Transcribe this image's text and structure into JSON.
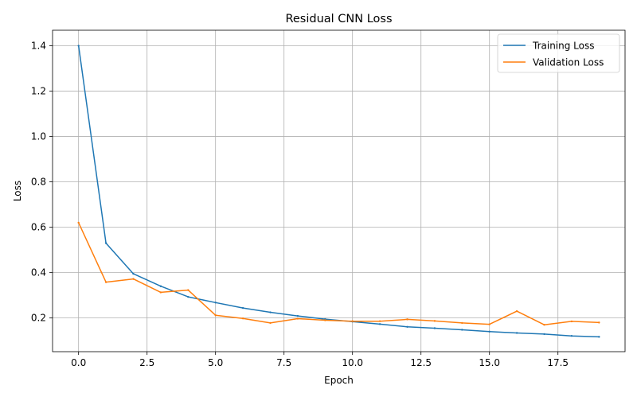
{
  "chart_data": {
    "type": "line",
    "title": "Residual CNN Loss",
    "xlabel": "Epoch",
    "ylabel": "Loss",
    "x": [
      0,
      1,
      2,
      3,
      4,
      5,
      6,
      7,
      8,
      9,
      10,
      11,
      12,
      13,
      14,
      15,
      16,
      17,
      18,
      19
    ],
    "series": [
      {
        "name": "Training Loss",
        "color": "#1f77b4",
        "values": [
          1.4,
          0.53,
          0.395,
          0.34,
          0.293,
          0.268,
          0.244,
          0.225,
          0.209,
          0.195,
          0.184,
          0.173,
          0.161,
          0.155,
          0.148,
          0.14,
          0.134,
          0.129,
          0.121,
          0.117
        ]
      },
      {
        "name": "Validation Loss",
        "color": "#ff7f0e",
        "values": [
          0.62,
          0.358,
          0.372,
          0.313,
          0.323,
          0.212,
          0.198,
          0.178,
          0.197,
          0.19,
          0.186,
          0.186,
          0.194,
          0.187,
          0.178,
          0.172,
          0.23,
          0.17,
          0.185,
          0.18
        ]
      }
    ],
    "xlim": [
      -0.95,
      19.95
    ],
    "ylim": [
      0.0515,
      1.4685
    ],
    "x_ticks": [
      0,
      2.5,
      5,
      7.5,
      10,
      12.5,
      15,
      17.5
    ],
    "x_tick_labels": [
      "0.0",
      "2.5",
      "5.0",
      "7.5",
      "10.0",
      "12.5",
      "15.0",
      "17.5"
    ],
    "y_ticks": [
      0.2,
      0.4,
      0.6,
      0.8,
      1.0,
      1.2,
      1.4
    ],
    "y_tick_labels": [
      "0.2",
      "0.4",
      "0.6",
      "0.8",
      "1.0",
      "1.2",
      "1.4"
    ],
    "grid": true,
    "legend_position": "top-right"
  }
}
